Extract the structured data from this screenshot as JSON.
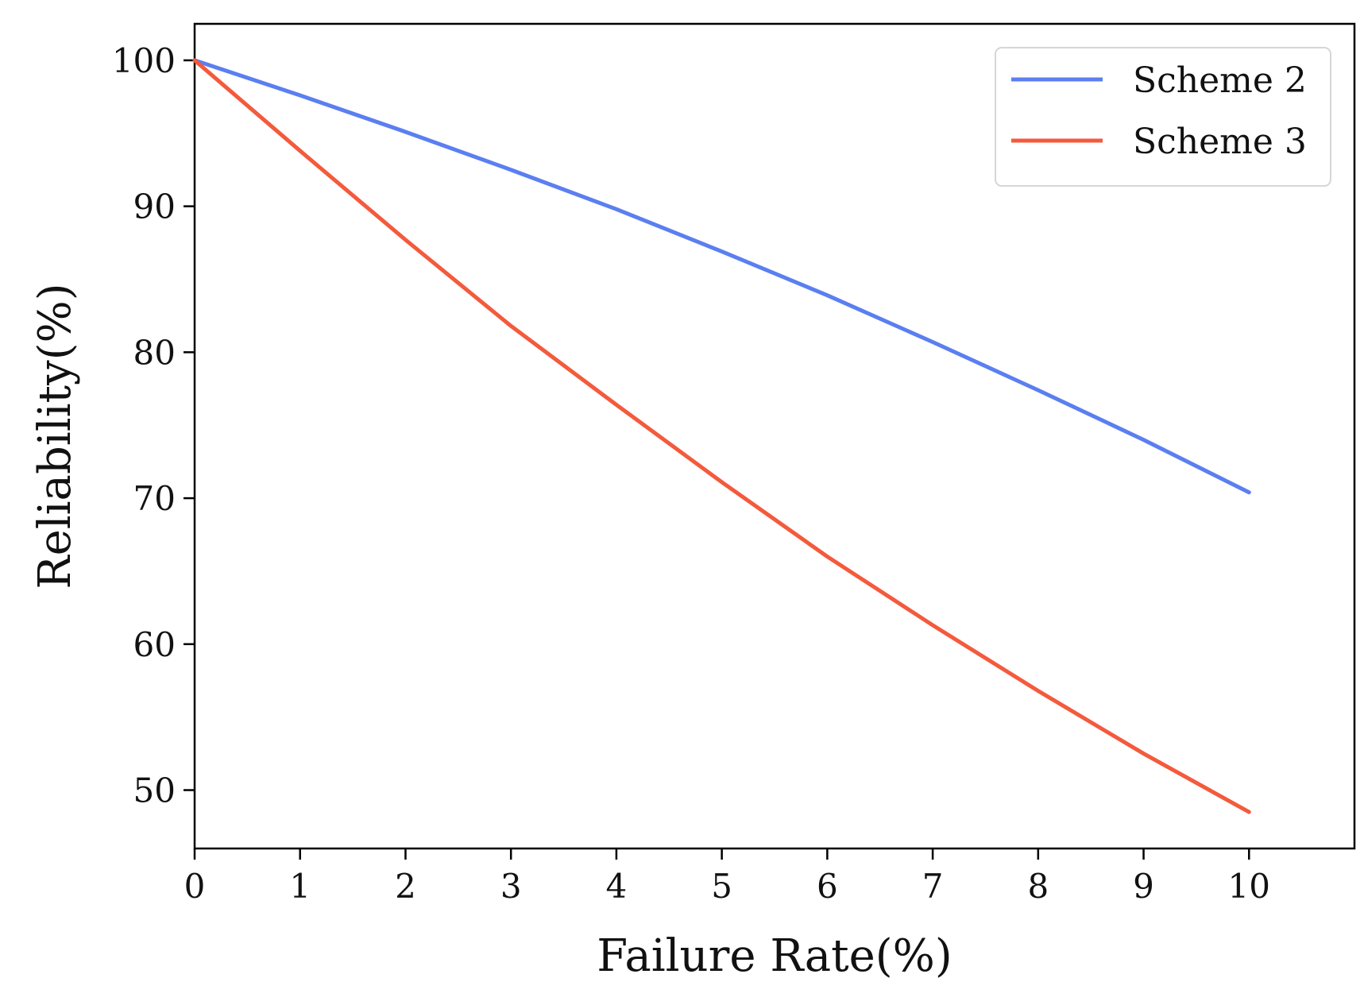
{
  "chart_data": {
    "type": "line",
    "title": "",
    "xlabel": "Failure Rate(%)",
    "ylabel": "Reliability(%)",
    "xlim": [
      0,
      11
    ],
    "ylim": [
      46,
      102.5
    ],
    "xticks": [
      0,
      1,
      2,
      3,
      4,
      5,
      6,
      7,
      8,
      9,
      10
    ],
    "yticks": [
      50,
      60,
      70,
      80,
      90,
      100
    ],
    "x": [
      0,
      1,
      2,
      3,
      4,
      5,
      6,
      7,
      8,
      9,
      10
    ],
    "series": [
      {
        "name": "Scheme 2",
        "color": "#5b7ff0",
        "values": [
          100,
          97.6,
          95.1,
          92.5,
          89.8,
          86.9,
          83.9,
          80.7,
          77.4,
          74.0,
          70.4
        ]
      },
      {
        "name": "Scheme 3",
        "color": "#f45a3c",
        "values": [
          100,
          93.8,
          87.7,
          81.8,
          76.4,
          71.1,
          66.0,
          61.3,
          56.8,
          52.5,
          48.5
        ]
      }
    ],
    "legend": {
      "position": "top-right"
    },
    "grid": false
  }
}
